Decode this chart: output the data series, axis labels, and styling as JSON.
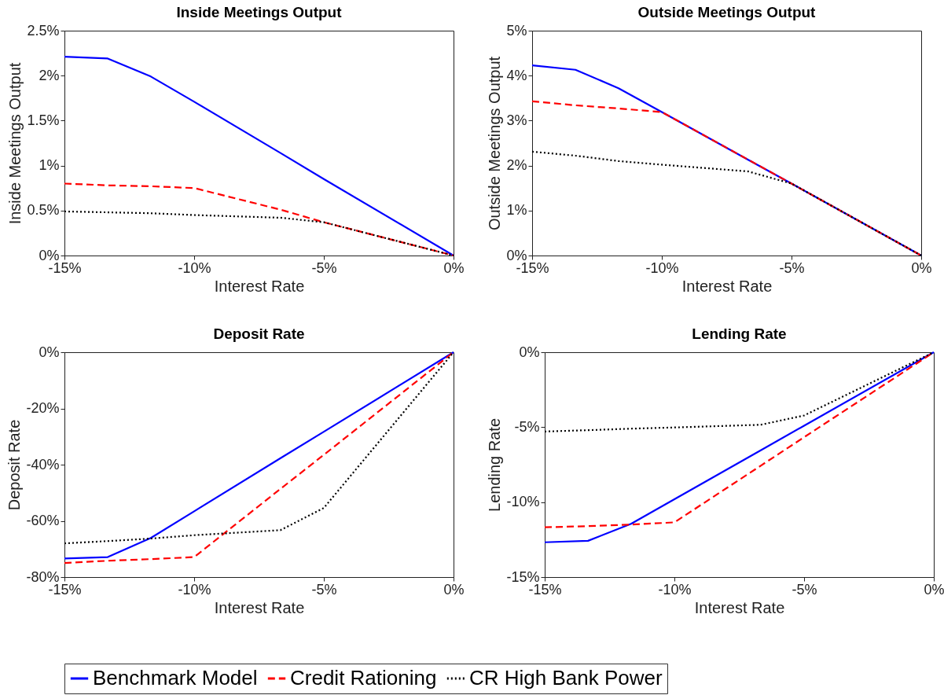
{
  "chart_data": [
    {
      "type": "line",
      "title": "Inside Meetings Output",
      "xlabel": "Interest Rate",
      "ylabel": "Inside Meetings Output",
      "x": [
        -15,
        -13.33,
        -11.67,
        -10,
        -6.67,
        -5,
        0
      ],
      "xlim": [
        -15,
        0
      ],
      "xticks": [
        {
          "value": -15,
          "label": "-15%"
        },
        {
          "value": -10,
          "label": "-10%"
        },
        {
          "value": -5,
          "label": "-5%"
        },
        {
          "value": 0,
          "label": "0%"
        }
      ],
      "ylim": [
        0,
        2.5
      ],
      "yticks": [
        {
          "value": 0,
          "label": "0%"
        },
        {
          "value": 0.5,
          "label": "0.5%"
        },
        {
          "value": 1,
          "label": "1%"
        },
        {
          "value": 1.5,
          "label": "1.5%"
        },
        {
          "value": 2,
          "label": "2%"
        },
        {
          "value": 2.5,
          "label": "2.5%"
        }
      ],
      "grid": false,
      "legend": "bottom",
      "series": [
        {
          "name": "Benchmark Model",
          "color": "#0000ff",
          "line_style": "solid",
          "values": [
            2.21,
            2.19,
            1.99,
            1.71,
            1.14,
            0.85,
            0
          ]
        },
        {
          "name": "Credit Rationing",
          "color": "#ff0000",
          "line_style": "dashed",
          "values": [
            0.8,
            0.78,
            0.77,
            0.75,
            0.51,
            0.37,
            0
          ]
        },
        {
          "name": "CR High Bank Power",
          "color": "#000000",
          "line_style": "dotted",
          "values": [
            0.49,
            0.48,
            0.47,
            0.45,
            0.42,
            0.37,
            0
          ]
        }
      ]
    },
    {
      "type": "line",
      "title": "Outside Meetings Output",
      "xlabel": "Interest Rate",
      "ylabel": "Outside Meetings Output",
      "x": [
        -15,
        -13.33,
        -11.67,
        -10,
        -6.67,
        -5,
        0
      ],
      "xlim": [
        -15,
        0
      ],
      "xticks": [
        {
          "value": -15,
          "label": "-15%"
        },
        {
          "value": -10,
          "label": "-10%"
        },
        {
          "value": -5,
          "label": "-5%"
        },
        {
          "value": 0,
          "label": "0%"
        }
      ],
      "ylim": [
        0,
        5
      ],
      "yticks": [
        {
          "value": 0,
          "label": "0%"
        },
        {
          "value": 1,
          "label": "1%"
        },
        {
          "value": 2,
          "label": "2%"
        },
        {
          "value": 3,
          "label": "3%"
        },
        {
          "value": 4,
          "label": "4%"
        },
        {
          "value": 5,
          "label": "5%"
        }
      ],
      "grid": false,
      "legend": "bottom",
      "series": [
        {
          "name": "Benchmark Model",
          "color": "#0000ff",
          "line_style": "solid",
          "values": [
            4.23,
            4.13,
            3.72,
            3.19,
            2.13,
            1.6,
            0
          ]
        },
        {
          "name": "Credit Rationing",
          "color": "#ff0000",
          "line_style": "dashed",
          "values": [
            3.43,
            3.34,
            3.27,
            3.19,
            2.13,
            1.6,
            0
          ]
        },
        {
          "name": "CR High Bank Power",
          "color": "#000000",
          "line_style": "dotted",
          "values": [
            2.31,
            2.22,
            2.1,
            2.02,
            1.87,
            1.6,
            0
          ]
        }
      ]
    },
    {
      "type": "line",
      "title": "Deposit Rate",
      "xlabel": "Interest Rate",
      "ylabel": "Deposit Rate",
      "x": [
        -15,
        -13.33,
        -11.67,
        -10,
        -6.67,
        -5,
        0
      ],
      "xlim": [
        -15,
        0
      ],
      "xticks": [
        {
          "value": -15,
          "label": "-15%"
        },
        {
          "value": -10,
          "label": "-10%"
        },
        {
          "value": -5,
          "label": "-5%"
        },
        {
          "value": 0,
          "label": "0%"
        }
      ],
      "ylim": [
        -80,
        0
      ],
      "yticks": [
        {
          "value": -80,
          "label": "-80%"
        },
        {
          "value": -60,
          "label": "-60%"
        },
        {
          "value": -40,
          "label": "-40%"
        },
        {
          "value": -20,
          "label": "-20%"
        },
        {
          "value": 0,
          "label": "0%"
        }
      ],
      "grid": false,
      "legend": "bottom",
      "series": [
        {
          "name": "Benchmark Model",
          "color": "#0000ff",
          "line_style": "solid",
          "values": [
            -73.4,
            -72.9,
            -66.1,
            -56.6,
            -37.7,
            -28.3,
            0
          ]
        },
        {
          "name": "Credit Rationing",
          "color": "#ff0000",
          "line_style": "dashed",
          "values": [
            -75,
            -74.2,
            -73.6,
            -72.9,
            -48.6,
            -36.5,
            0
          ]
        },
        {
          "name": "CR High Bank Power",
          "color": "#000000",
          "line_style": "dotted",
          "values": [
            -68,
            -67.2,
            -66.3,
            -65.1,
            -63.3,
            -55.4,
            0
          ]
        }
      ]
    },
    {
      "type": "line",
      "title": "Lending Rate",
      "xlabel": "Interest Rate",
      "ylabel": "Lending Rate",
      "x": [
        -15,
        -13.33,
        -11.67,
        -10,
        -6.67,
        -5,
        0
      ],
      "xlim": [
        -15,
        0
      ],
      "xticks": [
        {
          "value": -15,
          "label": "-15%"
        },
        {
          "value": -10,
          "label": "-10%"
        },
        {
          "value": -5,
          "label": "-5%"
        },
        {
          "value": 0,
          "label": "0%"
        }
      ],
      "ylim": [
        -15,
        0
      ],
      "yticks": [
        {
          "value": -15,
          "label": "-15%"
        },
        {
          "value": -10,
          "label": "-10%"
        },
        {
          "value": -5,
          "label": "-5%"
        },
        {
          "value": 0,
          "label": "0%"
        }
      ],
      "grid": false,
      "legend": "bottom",
      "series": [
        {
          "name": "Benchmark Model",
          "color": "#0000ff",
          "line_style": "solid",
          "values": [
            -12.68,
            -12.58,
            -11.45,
            -9.81,
            -6.54,
            -4.9,
            0
          ]
        },
        {
          "name": "Credit Rationing",
          "color": "#ff0000",
          "line_style": "dashed",
          "values": [
            -11.68,
            -11.6,
            -11.5,
            -11.35,
            -7.57,
            -5.67,
            0
          ]
        },
        {
          "name": "CR High Bank Power",
          "color": "#000000",
          "line_style": "dotted",
          "values": [
            -5.29,
            -5.2,
            -5.1,
            -5.02,
            -4.84,
            -4.22,
            0
          ]
        }
      ]
    }
  ]
}
